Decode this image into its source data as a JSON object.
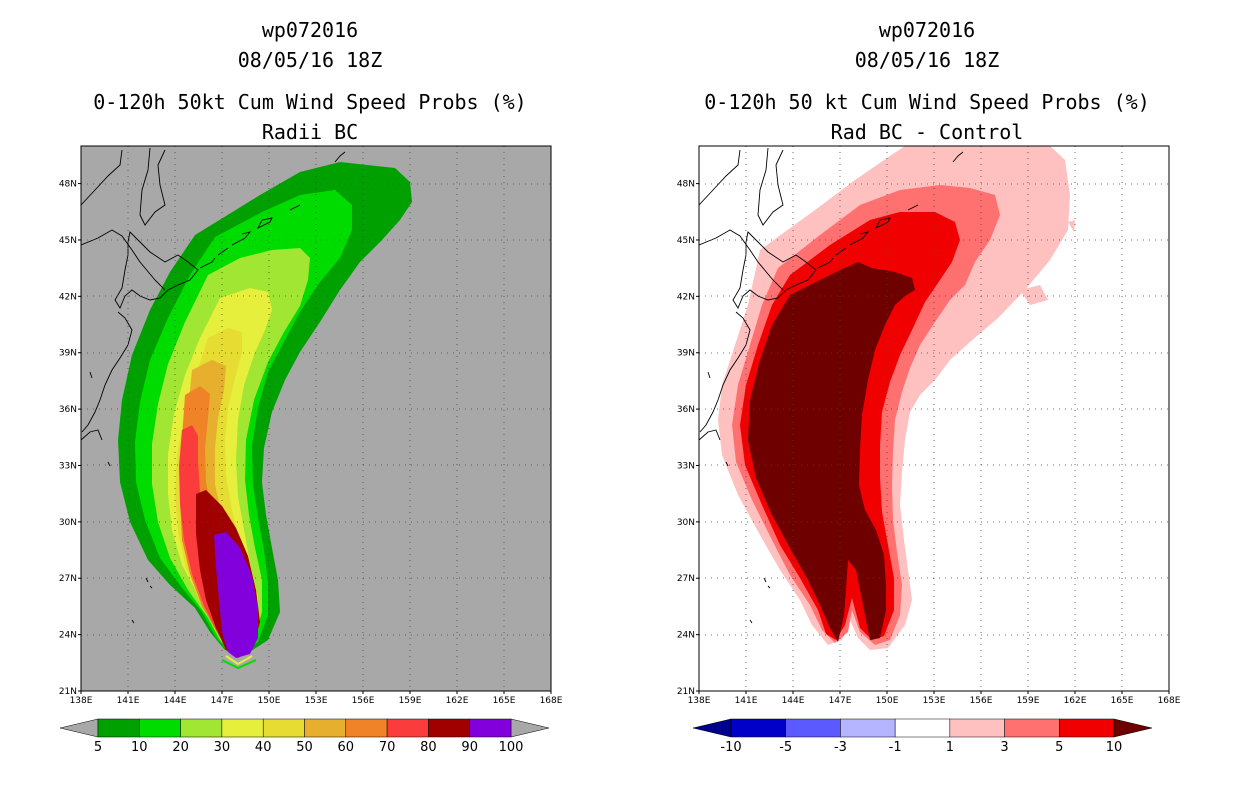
{
  "chart_data": [
    {
      "type": "heatmap",
      "title_lines": [
        "wp072016",
        "08/05/16 18Z",
        "0-120h 50kt Cum Wind Speed Probs (%)",
        "Radii BC"
      ],
      "xlim": [
        138,
        168
      ],
      "ylim": [
        21,
        50
      ],
      "x_tick_labels": [
        "138E",
        "141E",
        "144E",
        "147E",
        "150E",
        "153E",
        "156E",
        "159E",
        "162E",
        "165E",
        "168E"
      ],
      "y_tick_labels": [
        "21N",
        "24N",
        "27N",
        "30N",
        "33N",
        "36N",
        "39N",
        "42N",
        "45N",
        "48N"
      ],
      "background": "#a8a8a8",
      "colorbar": {
        "levels": [
          "5",
          "10",
          "20",
          "30",
          "40",
          "50",
          "60",
          "70",
          "80",
          "90",
          "100"
        ],
        "colors": [
          "#00a000",
          "#00dc00",
          "#a0e632",
          "#e6f03c",
          "#e6dc32",
          "#e6af2d",
          "#f08228",
          "#fa3c3c",
          "#a00000",
          "#8200dc"
        ],
        "extend_low": "#a8a8a8",
        "extend_high": "#a8a8a8"
      }
    },
    {
      "type": "heatmap",
      "title_lines": [
        "wp072016",
        "08/05/16 18Z",
        "0-120h 50 kt Cum Wind Speed Probs (%)",
        "Rad BC - Control"
      ],
      "xlim": [
        138,
        168
      ],
      "ylim": [
        21,
        50
      ],
      "x_tick_labels": [
        "138E",
        "141E",
        "144E",
        "147E",
        "150E",
        "153E",
        "156E",
        "159E",
        "162E",
        "165E",
        "168E"
      ],
      "y_tick_labels": [
        "21N",
        "24N",
        "27N",
        "30N",
        "33N",
        "36N",
        "39N",
        "42N",
        "45N",
        "48N"
      ],
      "background": "#ffffff",
      "colorbar": {
        "levels": [
          "-10",
          "-5",
          "-3",
          "-1",
          "1",
          "3",
          "5",
          "10"
        ],
        "colors": [
          "#0000c8",
          "#5a5aff",
          "#b4b4ff",
          "#ffffff",
          "#ffc0c0",
          "#ff7070",
          "#f00000"
        ],
        "extend_low": "#00008c",
        "extend_high": "#6e0000"
      }
    }
  ]
}
